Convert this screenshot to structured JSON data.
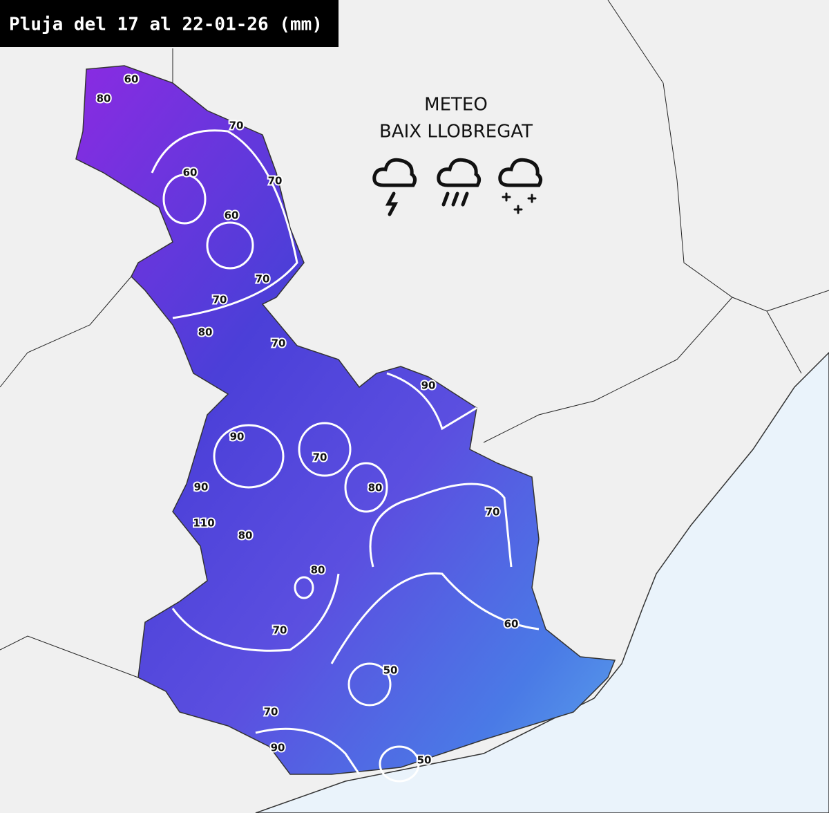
{
  "header": {
    "title": "Pluja del 17 al 22-01-26 (mm)"
  },
  "logo": {
    "line1": "METEO",
    "line2": "BAIX LLOBREGAT"
  },
  "contours": {
    "labels": [
      "60",
      "80",
      "70",
      "60",
      "70",
      "60",
      "70",
      "70",
      "80",
      "70",
      "90",
      "90",
      "70",
      "80",
      "90",
      "110",
      "80",
      "70",
      "80",
      "70",
      "60",
      "50",
      "70",
      "90",
      "50"
    ]
  }
}
